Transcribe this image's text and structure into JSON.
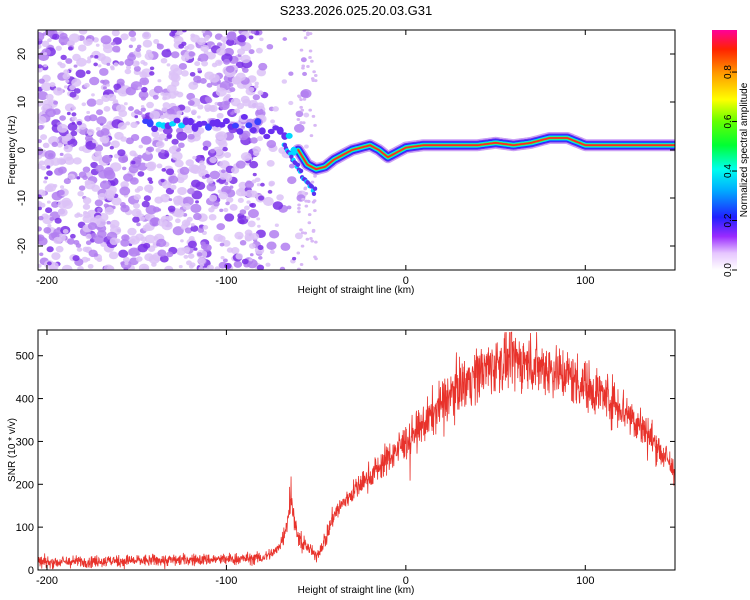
{
  "title": "S233.2026.025.20.03.G31",
  "chart_data": [
    {
      "type": "heatmap",
      "title": "S233.2026.025.20.03.G31",
      "xlabel": "Height of straight line (km)",
      "ylabel": "Frequency (Hz)",
      "xlim": [
        -205,
        150
      ],
      "ylim": [
        -25,
        25
      ],
      "x_ticks": [
        -200,
        -100,
        0,
        100
      ],
      "y_ticks": [
        -20,
        -10,
        0,
        10,
        20
      ],
      "ridge": {
        "x": [
          -145,
          -120,
          -100,
          -85,
          -75,
          -68,
          -60,
          -55,
          -50,
          -45,
          -40,
          -35,
          -30,
          -25,
          -20,
          -15,
          -10,
          -5,
          0,
          10,
          20,
          40,
          50,
          60,
          70,
          80,
          90,
          100,
          110,
          120,
          130,
          140,
          150
        ],
        "y": [
          5,
          5.5,
          5.5,
          5,
          4,
          3,
          0,
          -3,
          -4,
          -3.5,
          -2,
          -1,
          0,
          0.5,
          1,
          0,
          -1.5,
          -0.5,
          0.5,
          1,
          1,
          1,
          1.5,
          1,
          1.5,
          2.5,
          2.5,
          1,
          1,
          1,
          1,
          1,
          1
        ]
      },
      "colorbar": {
        "label": "Normalized spectral amplitude",
        "ticks": [
          0.0,
          0.2,
          0.4,
          0.6,
          0.8
        ],
        "range": [
          0,
          0.97
        ]
      }
    },
    {
      "type": "line",
      "xlabel": "Height of straight line (km)",
      "ylabel": "SNR (10 * v/v)",
      "xlim": [
        -205,
        150
      ],
      "ylim": [
        0,
        560
      ],
      "x_ticks": [
        -200,
        -100,
        0,
        100
      ],
      "y_ticks": [
        0,
        100,
        200,
        300,
        400,
        500
      ],
      "series": [
        {
          "name": "SNR",
          "color": "#e8322b",
          "x": [
            -205,
            -150,
            -100,
            -80,
            -72,
            -68,
            -64,
            -60,
            -55,
            -50,
            -45,
            -40,
            -30,
            -20,
            -10,
            0,
            10,
            20,
            30,
            40,
            50,
            60,
            70,
            80,
            90,
            100,
            110,
            120,
            130,
            140,
            150
          ],
          "y": [
            18,
            22,
            25,
            28,
            45,
            80,
            160,
            75,
            55,
            30,
            70,
            130,
            180,
            220,
            260,
            300,
            340,
            390,
            430,
            460,
            480,
            490,
            480,
            470,
            455,
            430,
            410,
            380,
            340,
            290,
            230
          ]
        }
      ]
    }
  ]
}
